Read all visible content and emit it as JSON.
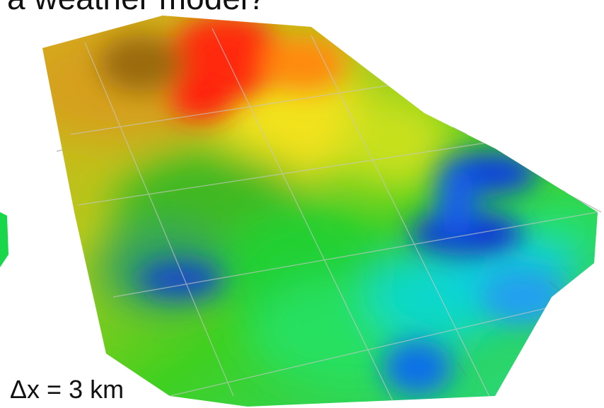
{
  "slide": {
    "title_fragment": "a weather model?",
    "grid_spacing_label": "Δx  = 3 km"
  },
  "figure": {
    "type": "3d-surface",
    "colormap": [
      "#ff0000",
      "#ffa500",
      "#ffff00",
      "#00ff00",
      "#00ffff",
      "#0000ff"
    ]
  }
}
